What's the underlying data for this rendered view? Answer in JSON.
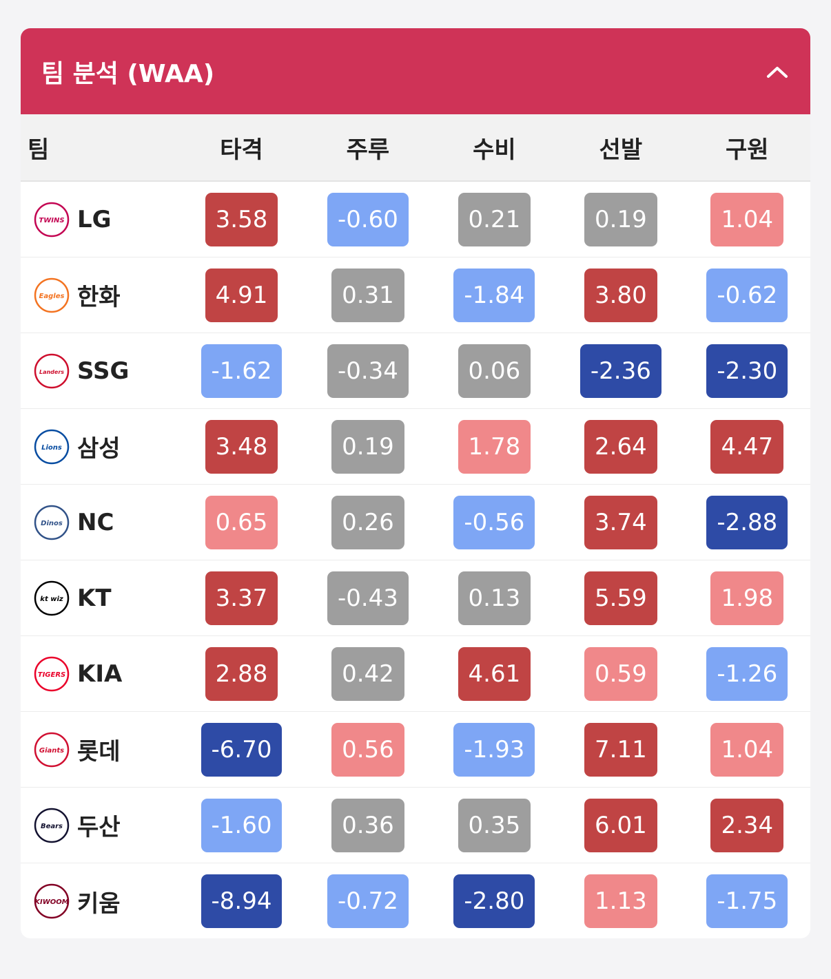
{
  "header": {
    "title": "팀 분석 (WAA)"
  },
  "table": {
    "columns": [
      "팀",
      "타격",
      "주루",
      "수비",
      "선발",
      "구원"
    ],
    "rows": [
      {
        "team": "LG",
        "logo": "lg-twins-logo",
        "logo_text": "TWINS",
        "logo_color": "#c30452",
        "values": [
          "3.58",
          "-0.60",
          "0.21",
          "0.19",
          "1.04"
        ]
      },
      {
        "team": "한화",
        "logo": "hanwha-eagles-logo",
        "logo_text": "Eagles",
        "logo_color": "#f37321",
        "values": [
          "4.91",
          "0.31",
          "-1.84",
          "3.80",
          "-0.62"
        ]
      },
      {
        "team": "SSG",
        "logo": "ssg-landers-logo",
        "logo_text": "Landers",
        "logo_color": "#ce0e2d",
        "values": [
          "-1.62",
          "-0.34",
          "0.06",
          "-2.36",
          "-2.30"
        ]
      },
      {
        "team": "삼성",
        "logo": "samsung-lions-logo",
        "logo_text": "Lions",
        "logo_color": "#074ca1",
        "values": [
          "3.48",
          "0.19",
          "1.78",
          "2.64",
          "4.47"
        ]
      },
      {
        "team": "NC",
        "logo": "nc-dinos-logo",
        "logo_text": "Dinos",
        "logo_color": "#315288",
        "values": [
          "0.65",
          "0.26",
          "-0.56",
          "3.74",
          "-2.88"
        ]
      },
      {
        "team": "KT",
        "logo": "kt-wiz-logo",
        "logo_text": "kt wiz",
        "logo_color": "#000000",
        "values": [
          "3.37",
          "-0.43",
          "0.13",
          "5.59",
          "1.98"
        ]
      },
      {
        "team": "KIA",
        "logo": "kia-tigers-logo",
        "logo_text": "TIGERS",
        "logo_color": "#ea0029",
        "values": [
          "2.88",
          "0.42",
          "4.61",
          "0.59",
          "-1.26"
        ]
      },
      {
        "team": "롯데",
        "logo": "lotte-giants-logo",
        "logo_text": "Giants",
        "logo_color": "#d00f31",
        "values": [
          "-6.70",
          "0.56",
          "-1.93",
          "7.11",
          "1.04"
        ]
      },
      {
        "team": "두산",
        "logo": "doosan-bears-logo",
        "logo_text": "Bears",
        "logo_color": "#131230",
        "values": [
          "-1.60",
          "0.36",
          "0.35",
          "6.01",
          "2.34"
        ]
      },
      {
        "team": "키움",
        "logo": "kiwoom-heroes-logo",
        "logo_text": "KIWOOM",
        "logo_color": "#820024",
        "values": [
          "-8.94",
          "-0.72",
          "-2.80",
          "1.13",
          "-1.75"
        ]
      }
    ]
  },
  "colors": {
    "header_bg": "#cf3357",
    "strong_pos": "#c04444",
    "weak_pos": "#f0888a",
    "neutral": "#9e9e9e",
    "weak_neg": "#7ea6f5",
    "strong_neg": "#2e4ba6"
  }
}
